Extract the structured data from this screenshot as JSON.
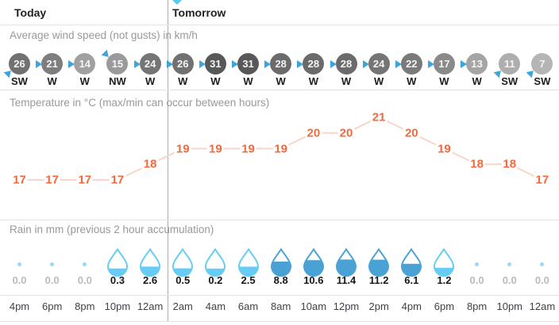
{
  "header": {
    "today": "Today",
    "tomorrow": "Tomorrow"
  },
  "wind": {
    "label": "Average wind speed (not gusts) in km/h",
    "arrow_color": "#3ba5dc",
    "items": [
      {
        "speed": 26,
        "dir": "SW",
        "color": "#717171"
      },
      {
        "speed": 21,
        "dir": "W",
        "color": "#7e7e7e"
      },
      {
        "speed": 14,
        "dir": "W",
        "color": "#a0a0a0"
      },
      {
        "speed": 15,
        "dir": "NW",
        "color": "#9a9a9a"
      },
      {
        "speed": 24,
        "dir": "W",
        "color": "#757575"
      },
      {
        "speed": 26,
        "dir": "W",
        "color": "#717171"
      },
      {
        "speed": 31,
        "dir": "W",
        "color": "#585858"
      },
      {
        "speed": 31,
        "dir": "W",
        "color": "#585858"
      },
      {
        "speed": 28,
        "dir": "W",
        "color": "#6b6b6b"
      },
      {
        "speed": 28,
        "dir": "W",
        "color": "#6b6b6b"
      },
      {
        "speed": 28,
        "dir": "W",
        "color": "#6b6b6b"
      },
      {
        "speed": 24,
        "dir": "W",
        "color": "#757575"
      },
      {
        "speed": 22,
        "dir": "W",
        "color": "#7a7a7a"
      },
      {
        "speed": 17,
        "dir": "W",
        "color": "#8a8a8a"
      },
      {
        "speed": 13,
        "dir": "W",
        "color": "#a5a5a5"
      },
      {
        "speed": 11,
        "dir": "SW",
        "color": "#aeaeae"
      },
      {
        "speed": 7,
        "dir": "SW",
        "color": "#b5b5b5"
      }
    ]
  },
  "temperature": {
    "label": "Temperature in °C (max/min can occur between hours)",
    "values": [
      17,
      17,
      17,
      17,
      18,
      19,
      19,
      19,
      19,
      20,
      20,
      21,
      20,
      19,
      18,
      18,
      17
    ],
    "number_color": "#f4683c",
    "line_color": "#f8d5c8"
  },
  "rain": {
    "label": "Rain in mm (previous 2 hour accumulation)",
    "values": [
      "0.0",
      "0.0",
      "0.0",
      "0.3",
      "2.6",
      "0.5",
      "0.2",
      "2.5",
      "8.8",
      "10.6",
      "11.4",
      "11.2",
      "6.1",
      "1.2",
      "0.0",
      "0.0",
      "0.0"
    ],
    "light_color": "#66ccf5",
    "dark_color": "#4aa2d4",
    "zero_dot_color": "#9bd9f5",
    "value_color": "#16191c",
    "zero_text_color": "#b8bcc0"
  },
  "times": [
    "4pm",
    "6pm",
    "8pm",
    "10pm",
    "12am",
    "2am",
    "4am",
    "6am",
    "8am",
    "10am",
    "12pm",
    "2pm",
    "4pm",
    "6pm",
    "8pm",
    "10pm",
    "12am"
  ],
  "now_marker_color": "#5bc8f0",
  "chart_data": {
    "type": "line",
    "title": "Weather forecast: wind, temperature and rain (Today / Tomorrow)",
    "x": [
      "4pm",
      "6pm",
      "8pm",
      "10pm",
      "12am",
      "2am",
      "4am",
      "6am",
      "8am",
      "10am",
      "12pm",
      "2pm",
      "4pm",
      "6pm",
      "8pm",
      "10pm",
      "12am"
    ],
    "series": [
      {
        "name": "Average wind speed (not gusts) in km/h",
        "values": [
          26,
          21,
          14,
          15,
          24,
          26,
          31,
          31,
          28,
          28,
          28,
          24,
          22,
          17,
          13,
          11,
          7
        ]
      },
      {
        "name": "Wind direction",
        "values": [
          "SW",
          "W",
          "W",
          "NW",
          "W",
          "W",
          "W",
          "W",
          "W",
          "W",
          "W",
          "W",
          "W",
          "W",
          "W",
          "SW",
          "SW"
        ]
      },
      {
        "name": "Temperature in °C",
        "values": [
          17,
          17,
          17,
          17,
          18,
          19,
          19,
          19,
          19,
          20,
          20,
          21,
          20,
          19,
          18,
          18,
          17
        ],
        "ylim": [
          17,
          21
        ]
      },
      {
        "name": "Rain in mm (previous 2 hour accumulation)",
        "values": [
          0.0,
          0.0,
          0.0,
          0.3,
          2.6,
          0.5,
          0.2,
          2.5,
          8.8,
          10.6,
          11.4,
          11.2,
          6.1,
          1.2,
          0.0,
          0.0,
          0.0
        ]
      }
    ],
    "layout_hints": {
      "today_columns": 5,
      "tomorrow_columns": 12,
      "grid": false,
      "legend": "inline section labels"
    }
  }
}
